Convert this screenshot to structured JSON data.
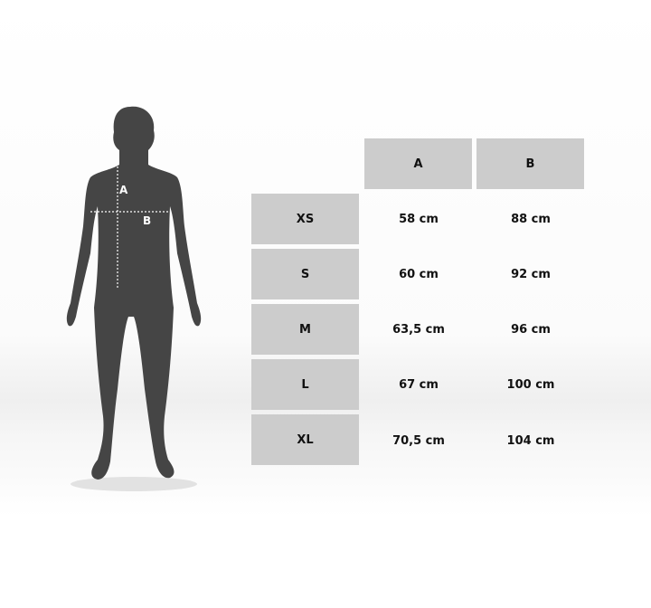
{
  "figure": {
    "label_a": "A",
    "label_b": "B",
    "silhouette_color": "#454545"
  },
  "table": {
    "columns": [
      "A",
      "B"
    ],
    "rows": [
      {
        "size": "XS",
        "a": "58 cm",
        "b": "88 cm"
      },
      {
        "size": "S",
        "a": "60 cm",
        "b": "92 cm"
      },
      {
        "size": "M",
        "a": "63,5 cm",
        "b": "96 cm"
      },
      {
        "size": "L",
        "a": "67 cm",
        "b": "100 cm"
      },
      {
        "size": "XL",
        "a": "70,5 cm",
        "b": "104 cm"
      }
    ],
    "header_color": "#cccccc"
  }
}
